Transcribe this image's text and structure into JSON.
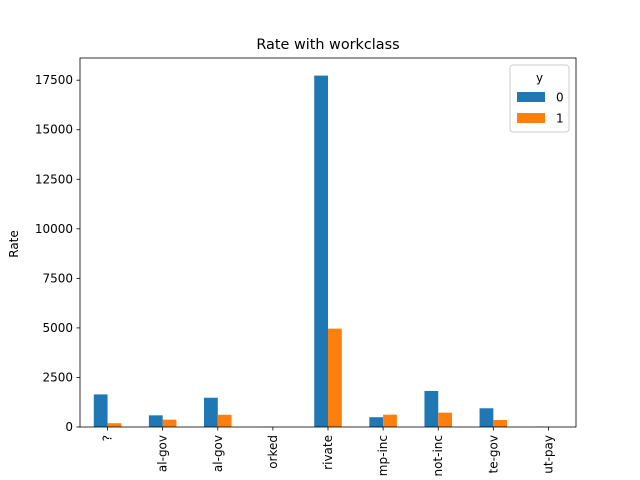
{
  "chart_data": {
    "type": "bar",
    "title": "Rate with workclass",
    "xlabel": "",
    "ylabel": "Rate",
    "categories": [
      "?",
      "al-gov",
      "al-gov",
      "orked",
      "rivate",
      "mp-inc",
      "not-inc",
      "te-gov",
      "ut-pay"
    ],
    "series": [
      {
        "name": "0",
        "color": "#1f77b4",
        "values": [
          1645,
          589,
          1476,
          7,
          17733,
          494,
          1817,
          945,
          14
        ]
      },
      {
        "name": "1",
        "color": "#ff7f0e",
        "values": [
          191,
          371,
          617,
          0,
          4963,
          622,
          724,
          353,
          0
        ]
      }
    ],
    "ylim": [
      0,
      18620
    ],
    "yticks": [
      0,
      2500,
      5000,
      7500,
      10000,
      12500,
      15000,
      17500
    ],
    "grid": false,
    "legend": {
      "title": "y",
      "placement": "top-right"
    }
  }
}
